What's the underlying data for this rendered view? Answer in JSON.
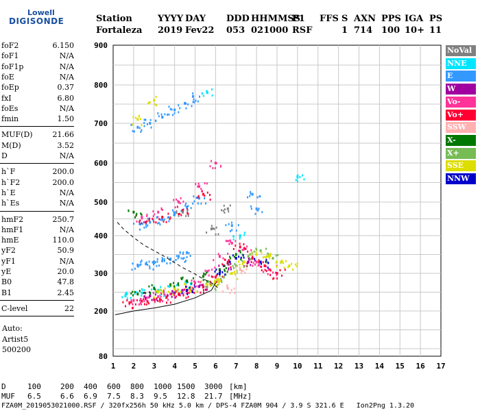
{
  "logo": {
    "brand_top": "Lowell",
    "brand_bottom": "DIGISONDE"
  },
  "header": {
    "row1": [
      "Station",
      "YYYY",
      "DAY",
      "DDD",
      "HHMMSS",
      "P1",
      "FFS",
      "S",
      "AXN",
      "PPS",
      "IGA",
      "PS"
    ],
    "row2": [
      "Fortaleza",
      "2019",
      "Fev22",
      "053",
      "021000",
      "RSF",
      "",
      "1",
      "714",
      "100",
      "10+",
      "11"
    ]
  },
  "parameters": {
    "group1": [
      {
        "label": "foF2",
        "value": "6.150"
      },
      {
        "label": "foF1",
        "value": "N/A"
      },
      {
        "label": "foF1p",
        "value": "N/A"
      },
      {
        "label": "foE",
        "value": "N/A"
      },
      {
        "label": "foEp",
        "value": "0.37"
      },
      {
        "label": "fxI",
        "value": "6.80"
      },
      {
        "label": "foEs",
        "value": "N/A"
      },
      {
        "label": "fmin",
        "value": "1.50"
      }
    ],
    "group2": [
      {
        "label": "MUF(D)",
        "value": "21.66"
      },
      {
        "label": "M(D)",
        "value": "3.52"
      },
      {
        "label": "D",
        "value": "N/A"
      }
    ],
    "group3": [
      {
        "label": "h`F",
        "value": "200.0"
      },
      {
        "label": "h`F2",
        "value": "200.0"
      },
      {
        "label": "h`E",
        "value": "N/A"
      },
      {
        "label": "h`Es",
        "value": "N/A"
      }
    ],
    "group4": [
      {
        "label": "hmF2",
        "value": "250.7"
      },
      {
        "label": "hmF1",
        "value": "N/A"
      },
      {
        "label": "hmE",
        "value": "110.0"
      },
      {
        "label": "yF2",
        "value": "50.9"
      },
      {
        "label": "yF1",
        "value": "N/A"
      },
      {
        "label": "yE",
        "value": "20.0"
      },
      {
        "label": "B0",
        "value": "47.8"
      },
      {
        "label": "B1",
        "value": "2.45"
      }
    ],
    "group5": [
      {
        "label": "C-level",
        "value": "22"
      }
    ],
    "autoscaling": [
      "Auto:",
      "Artist5",
      "500200"
    ]
  },
  "legend": [
    {
      "label": "NoVal",
      "bg": "#808080",
      "fg": "#ffffff"
    },
    {
      "label": "NNE",
      "bg": "#00e5ff",
      "fg": "#ffffff"
    },
    {
      "label": "E",
      "bg": "#3399ff",
      "fg": "#ffffff"
    },
    {
      "label": "W",
      "bg": "#a000a0",
      "fg": "#ffffff"
    },
    {
      "label": "Vo-",
      "bg": "#ff3399",
      "fg": "#ffffff"
    },
    {
      "label": "Vo+",
      "bg": "#ff0033",
      "fg": "#ffffff"
    },
    {
      "label": "SSW",
      "bg": "#ffb0b0",
      "fg": "#ffffff"
    },
    {
      "label": "X-",
      "bg": "#007700",
      "fg": "#ffffff"
    },
    {
      "label": "X+",
      "bg": "#77bb55",
      "fg": "#ffffff"
    },
    {
      "label": "SSE",
      "bg": "#dddd00",
      "fg": "#ffffff"
    },
    {
      "label": "NNW",
      "bg": "#0000cc",
      "fg": "#ffffff"
    }
  ],
  "footer": {
    "d_label": "D",
    "d_values": [
      "100",
      "200",
      "400",
      "600",
      "800",
      "1000",
      "1500",
      "3000",
      "[km]"
    ],
    "muf_label": "MUF",
    "muf_values": [
      "6.5",
      "6.6",
      "6.9",
      "7.5",
      "8.3",
      "9.5",
      "12.8",
      "21.7",
      "[MHz]"
    ],
    "file_line": "FZA0M_2019053021000.RSF / 320fx256h 50 kHz 5.0 km / DPS-4 FZA0M 904 / 3.9 S 321.6 E   Ion2Png 1.3.20"
  },
  "chart_data": {
    "type": "scatter",
    "title": "",
    "xlabel": "",
    "ylabel": "",
    "xlim": [
      1,
      17
    ],
    "ylim": [
      80,
      900
    ],
    "x_ticks": [
      1,
      2,
      3,
      4,
      5,
      6,
      7,
      8,
      9,
      10,
      11,
      12,
      13,
      14,
      15,
      16,
      17
    ],
    "y_ticks": [
      80,
      200,
      300,
      400,
      500,
      600,
      700,
      800,
      900
    ],
    "grid": true,
    "series": [
      {
        "name": "E",
        "color": "#3399ff",
        "points": [
          [
            2.2,
            322
          ],
          [
            2.6,
            325
          ],
          [
            3.0,
            328
          ],
          [
            3.4,
            333
          ],
          [
            3.8,
            338
          ],
          [
            4.2,
            345
          ],
          [
            4.6,
            355
          ],
          [
            2.2,
            690
          ],
          [
            2.8,
            700
          ],
          [
            3.4,
            716
          ],
          [
            4.0,
            735
          ],
          [
            4.5,
            752
          ],
          [
            4.9,
            770
          ],
          [
            2.3,
            435
          ],
          [
            2.8,
            440
          ],
          [
            3.4,
            448
          ],
          [
            4.0,
            465
          ],
          [
            4.6,
            485
          ],
          [
            5.2,
            510
          ],
          [
            7.8,
            520
          ],
          [
            8.0,
            480
          ],
          [
            6.8,
            430
          ]
        ]
      },
      {
        "name": "NNE",
        "color": "#00e5ff",
        "points": [
          [
            1.6,
            240
          ],
          [
            2.4,
            248
          ],
          [
            3.2,
            255
          ],
          [
            4.0,
            262
          ],
          [
            4.8,
            272
          ],
          [
            10.0,
            565
          ],
          [
            5.6,
            780
          ],
          [
            7.2,
            400
          ]
        ]
      },
      {
        "name": "Vo-",
        "color": "#ff3399",
        "points": [
          [
            2.0,
            228
          ],
          [
            2.6,
            232
          ],
          [
            3.2,
            238
          ],
          [
            3.8,
            245
          ],
          [
            4.4,
            255
          ],
          [
            5.0,
            275
          ],
          [
            5.6,
            305
          ],
          [
            6.2,
            345
          ],
          [
            6.8,
            380
          ],
          [
            7.4,
            365
          ],
          [
            8.0,
            330
          ],
          [
            8.6,
            310
          ],
          [
            2.4,
            455
          ],
          [
            3.2,
            470
          ],
          [
            4.2,
            500
          ],
          [
            5.2,
            540
          ],
          [
            6.0,
            600
          ]
        ]
      },
      {
        "name": "Vo+",
        "color": "#ff0033",
        "points": [
          [
            1.8,
            222
          ],
          [
            2.4,
            226
          ],
          [
            3.0,
            230
          ],
          [
            3.6,
            236
          ],
          [
            4.2,
            244
          ],
          [
            4.8,
            252
          ],
          [
            5.4,
            264
          ],
          [
            6.0,
            290
          ],
          [
            6.6,
            330
          ],
          [
            7.2,
            370
          ],
          [
            7.8,
            340
          ],
          [
            8.4,
            320
          ],
          [
            9.0,
            300
          ],
          [
            2.6,
            440
          ],
          [
            3.4,
            455
          ],
          [
            4.4,
            475
          ],
          [
            5.4,
            520
          ]
        ]
      },
      {
        "name": "W",
        "color": "#a000a0",
        "points": [
          [
            2.8,
            240
          ],
          [
            4.0,
            248
          ],
          [
            5.2,
            265
          ],
          [
            6.4,
            320
          ],
          [
            7.6,
            330
          ]
        ]
      },
      {
        "name": "X-",
        "color": "#007700",
        "points": [
          [
            2.2,
            245
          ],
          [
            3.0,
            260
          ],
          [
            3.8,
            270
          ],
          [
            4.6,
            280
          ],
          [
            5.4,
            292
          ],
          [
            6.2,
            310
          ],
          [
            7.0,
            350
          ],
          [
            2.0,
            470
          ]
        ]
      },
      {
        "name": "X+",
        "color": "#77bb55",
        "points": [
          [
            5.8,
            270
          ],
          [
            6.4,
            290
          ],
          [
            7.0,
            320
          ],
          [
            7.6,
            345
          ],
          [
            8.2,
            360
          ],
          [
            8.8,
            340
          ]
        ]
      },
      {
        "name": "SSE",
        "color": "#dddd00",
        "points": [
          [
            3.2,
            250
          ],
          [
            4.0,
            258
          ],
          [
            4.8,
            262
          ],
          [
            5.6,
            270
          ],
          [
            6.2,
            280
          ],
          [
            6.8,
            300
          ],
          [
            7.4,
            330
          ],
          [
            8.0,
            350
          ],
          [
            8.6,
            345
          ],
          [
            9.2,
            330
          ],
          [
            9.6,
            320
          ],
          [
            2.2,
            710
          ],
          [
            3.0,
            760
          ]
        ]
      },
      {
        "name": "NNW",
        "color": "#0000cc",
        "points": [
          [
            4.6,
            255
          ],
          [
            6.2,
            300
          ],
          [
            7.0,
            340
          ],
          [
            8.2,
            330
          ]
        ]
      },
      {
        "name": "SSW",
        "color": "#ffb0b0",
        "points": [
          [
            6.6,
            260
          ],
          [
            7.2,
            310
          ]
        ]
      },
      {
        "name": "NoVal",
        "color": "#808080",
        "points": [
          [
            4.4,
            470
          ],
          [
            5.8,
            420
          ],
          [
            6.6,
            480
          ]
        ]
      }
    ],
    "profile_solid": [
      [
        1.1,
        190
      ],
      [
        2.0,
        200
      ],
      [
        3.0,
        208
      ],
      [
        4.0,
        218
      ],
      [
        5.0,
        235
      ],
      [
        5.8,
        255
      ],
      [
        6.0,
        275
      ]
    ],
    "profile_dashed": [
      [
        1.2,
        440
      ],
      [
        1.5,
        420
      ],
      [
        2.0,
        395
      ],
      [
        2.5,
        375
      ],
      [
        3.0,
        360
      ],
      [
        3.5,
        345
      ],
      [
        4.0,
        328
      ],
      [
        4.5,
        312
      ],
      [
        5.0,
        298
      ],
      [
        5.4,
        285
      ],
      [
        5.8,
        275
      ],
      [
        6.1,
        262
      ]
    ]
  }
}
